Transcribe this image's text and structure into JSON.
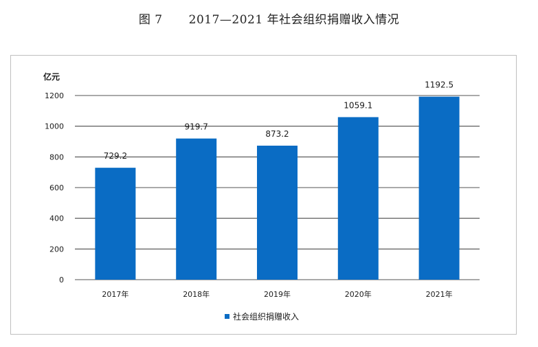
{
  "figure": {
    "number": "图 7",
    "title": "2017—2021 年社会组织捐赠收入情况"
  },
  "chart_data": {
    "type": "bar",
    "categories": [
      "2017年",
      "2018年",
      "2019年",
      "2020年",
      "2021年"
    ],
    "series": [
      {
        "name": "社会组织捐赠收入",
        "values": [
          729.2,
          919.7,
          873.2,
          1059.1,
          1192.5
        ],
        "color": "#0a6cc4"
      }
    ],
    "data_labels": [
      "729.2",
      "919.7",
      "873.2",
      "1059.1",
      "1192.5"
    ],
    "ylabel": "亿元",
    "ylim": [
      0,
      1200
    ],
    "yticks": [
      0,
      200,
      400,
      600,
      800,
      1000,
      1200
    ],
    "grid": true,
    "legend_position": "bottom"
  }
}
